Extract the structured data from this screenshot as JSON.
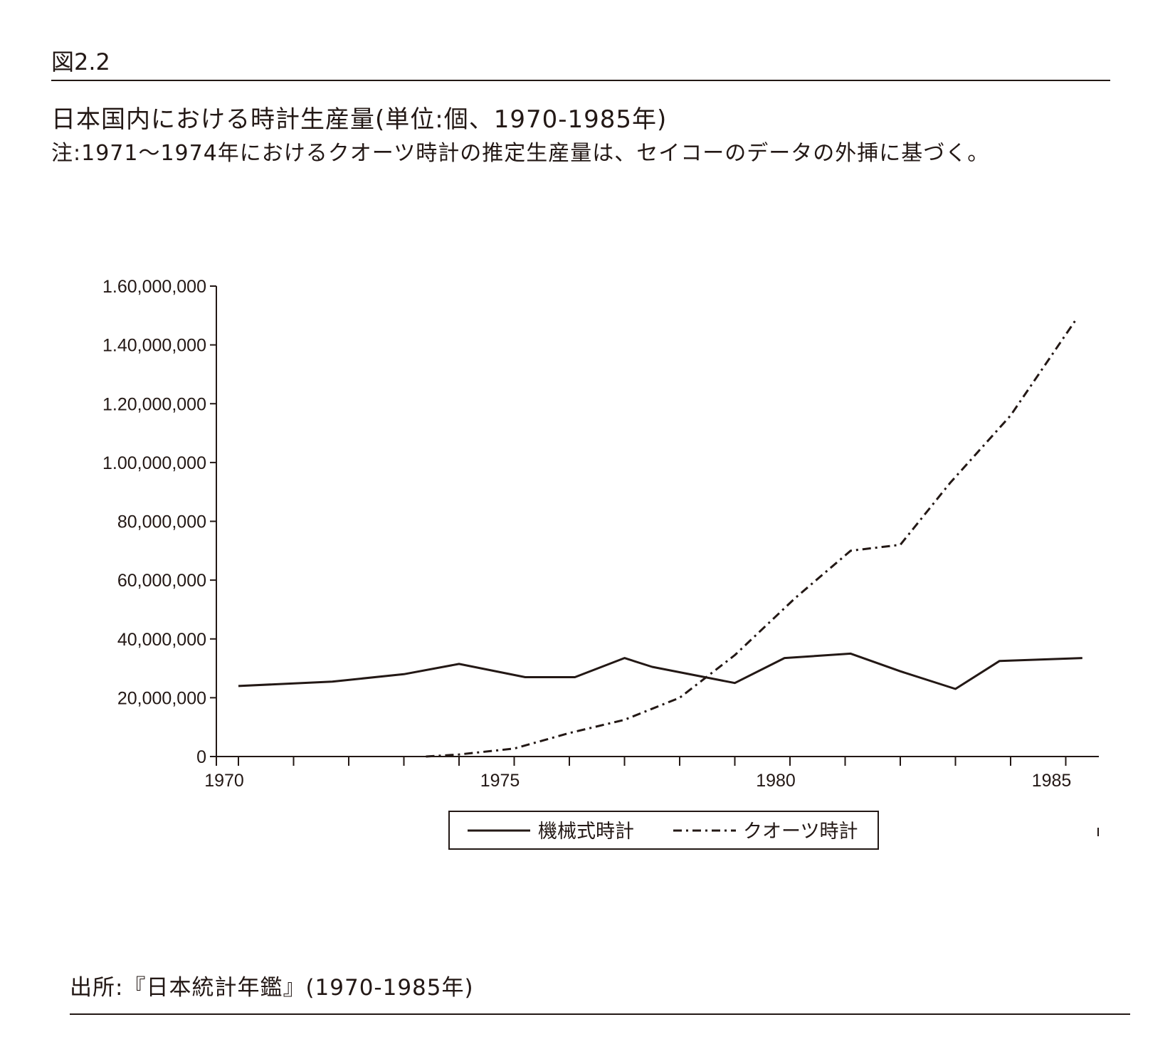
{
  "header": {
    "figure_label": "図2.2",
    "title": "日本国内における時計生産量(単位:個、1970-1985年)",
    "note": "注:1971〜1974年におけるクオーツ時計の推定生産量は、セイコーのデータの外挿に基づく。"
  },
  "footer": {
    "source": "出所:『日本統計年鑑』(1970-1985年)"
  },
  "colors": {
    "ink": "#231815"
  },
  "chart_data": {
    "type": "line",
    "title": "",
    "xlabel": "",
    "ylabel": "",
    "xlim": [
      1969.6,
      1985.6
    ],
    "ylim": [
      0,
      160000000
    ],
    "x_ticks": [
      1970,
      1975,
      1980,
      1985
    ],
    "y_ticks": [
      0,
      20000000,
      40000000,
      60000000,
      80000000,
      100000000,
      120000000,
      140000000,
      160000000
    ],
    "y_tick_labels": [
      "0",
      "20,000,000",
      "40,000,000",
      "60,000,000",
      "80,000,000",
      "1.00,000,000",
      "1.20,000,000",
      "1.40,000,000",
      "1.60,000,000"
    ],
    "grid": false,
    "legend_position": "bottom-center",
    "series": [
      {
        "name": "機械式時計",
        "style": "solid",
        "points": [
          [
            1970,
            24000000
          ],
          [
            1971.7,
            25500000
          ],
          [
            1973,
            28000000
          ],
          [
            1974,
            31500000
          ],
          [
            1975.2,
            27000000
          ],
          [
            1976.1,
            27000000
          ],
          [
            1977,
            33500000
          ],
          [
            1977.5,
            30500000
          ],
          [
            1979,
            25000000
          ],
          [
            1979.9,
            33500000
          ],
          [
            1981.1,
            35000000
          ],
          [
            1982,
            29000000
          ],
          [
            1983,
            23000000
          ],
          [
            1983.8,
            32500000
          ],
          [
            1985.3,
            33500000
          ]
        ]
      },
      {
        "name": "クオーツ時計",
        "style": "dash-dot",
        "points": [
          [
            1973.4,
            0
          ],
          [
            1974,
            700000
          ],
          [
            1975,
            2700000
          ],
          [
            1976,
            8000000
          ],
          [
            1977,
            12500000
          ],
          [
            1978,
            20000000
          ],
          [
            1979,
            34500000
          ],
          [
            1980.1,
            54000000
          ],
          [
            1981.1,
            70000000
          ],
          [
            1982,
            72000000
          ],
          [
            1982.9,
            93000000
          ],
          [
            1984,
            116000000
          ],
          [
            1985.2,
            149000000
          ]
        ]
      }
    ]
  }
}
